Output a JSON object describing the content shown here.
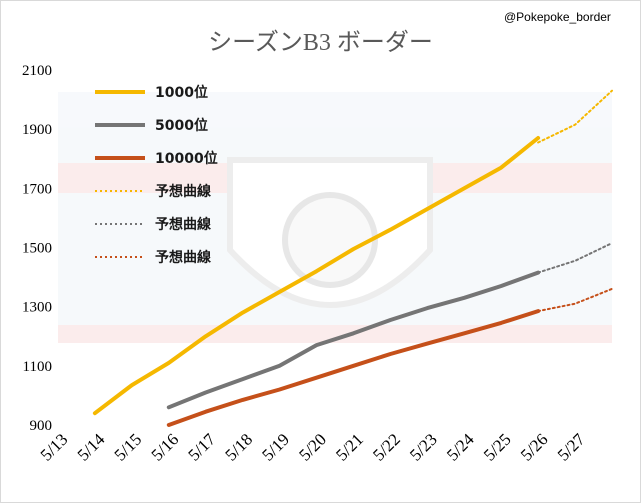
{
  "credit": "@Pokepoke_border",
  "chart_data": {
    "type": "line",
    "title": "シーズンB3 ボーダー",
    "xlabel": "",
    "ylabel": "",
    "x_ticks": [
      "5/13",
      "5/14",
      "5/15",
      "5/16",
      "5/17",
      "5/18",
      "5/19",
      "5/20",
      "5/21",
      "5/22",
      "5/23",
      "5/24",
      "5/25",
      "5/26",
      "5/27"
    ],
    "xlim": [
      "5/13",
      "5/28"
    ],
    "ylim": [
      900,
      2100
    ],
    "y_ticks": [
      900,
      1100,
      1300,
      1500,
      1700,
      1900,
      2100
    ],
    "grid": false,
    "legend_position": "top-left",
    "series": [
      {
        "name": "1000位",
        "color": "#F5B800",
        "style": "solid",
        "x": [
          "5/14",
          "5/15",
          "5/16",
          "5/17",
          "5/18",
          "5/19",
          "5/20",
          "5/21",
          "5/22",
          "5/23",
          "5/24",
          "5/25",
          "5/26"
        ],
        "y": [
          940,
          1035,
          1110,
          1200,
          1280,
          1350,
          1420,
          1495,
          1560,
          1630,
          1700,
          1770,
          1870
        ]
      },
      {
        "name": "5000位",
        "color": "#757575",
        "style": "solid",
        "x": [
          "5/16",
          "5/17",
          "5/18",
          "5/19",
          "5/20",
          "5/21",
          "5/22",
          "5/23",
          "5/24",
          "5/25",
          "5/26"
        ],
        "y": [
          960,
          1010,
          1055,
          1100,
          1170,
          1210,
          1255,
          1295,
          1330,
          1370,
          1415
        ]
      },
      {
        "name": "10000位",
        "color": "#C5501A",
        "style": "solid",
        "x": [
          "5/16",
          "5/17",
          "5/18",
          "5/19",
          "5/20",
          "5/21",
          "5/22",
          "5/23",
          "5/24",
          "5/25",
          "5/26"
        ],
        "y": [
          900,
          945,
          985,
          1020,
          1060,
          1100,
          1140,
          1175,
          1210,
          1245,
          1285
        ]
      },
      {
        "name": "予想曲線",
        "color": "#F5B800",
        "style": "dotted",
        "x": [
          "5/26",
          "5/27",
          "5/28"
        ],
        "y": [
          1855,
          1915,
          2030
        ]
      },
      {
        "name": "予想曲線",
        "color": "#757575",
        "style": "dotted",
        "x": [
          "5/26",
          "5/27",
          "5/28"
        ],
        "y": [
          1415,
          1455,
          1515
        ]
      },
      {
        "name": "予想曲線",
        "color": "#C5501A",
        "style": "dotted",
        "x": [
          "5/26",
          "5/27",
          "5/28"
        ],
        "y": [
          1285,
          1310,
          1360
        ]
      }
    ]
  }
}
